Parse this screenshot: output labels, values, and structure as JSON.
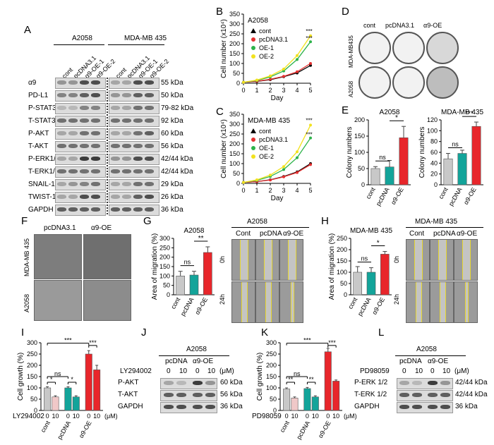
{
  "panels": {
    "A": {
      "letter": "A",
      "group1": "A2058",
      "group2": "MDA-MB 435",
      "lanes": [
        "cont",
        "pcDNA3.1",
        "α9-OE-1",
        "α9-OE-2",
        "cont",
        "pcDNA3.1",
        "α9-OE-1",
        "α9-OE-2"
      ],
      "proteins": [
        "α9",
        "PD-L1",
        "P-STAT3",
        "T-STAT3",
        "P-AKT",
        "T-AKT",
        "P-ERK1/2",
        "T-ERK1/2",
        "SNAIL-1",
        "TWIST-1",
        "GAPDH"
      ],
      "kda": [
        "55 kDa",
        "50 kDa",
        "79-82 kDa",
        "92 kDa",
        "60 kDa",
        "56 kDa",
        "42/44 kDa",
        "42/44 kDa",
        "29 kDa",
        "26 kDa",
        "36 kDa"
      ]
    },
    "B": {
      "letter": "B"
    },
    "C": {
      "letter": "C"
    },
    "D": {
      "letter": "D",
      "cols": [
        "cont",
        "pcDNA3.1",
        "α9-OE"
      ],
      "rows": [
        "MDA-MB435",
        "A2058"
      ]
    },
    "E": {
      "letter": "E"
    },
    "F": {
      "letter": "F",
      "cols": [
        "pcDNA3.1",
        "α9-OE"
      ],
      "rows": [
        "MDA-MB 435",
        "A2058"
      ]
    },
    "G": {
      "letter": "G",
      "img_title": "A2058",
      "cols": [
        "Cont",
        "pcDNA",
        "α9-OE"
      ],
      "rows": [
        "0h",
        "24h"
      ]
    },
    "H": {
      "letter": "H",
      "img_title": "MDA-MB 435",
      "cols": [
        "Cont",
        "pcDNA",
        "α9-OE"
      ],
      "rows": [
        "0h",
        "24h"
      ]
    },
    "I": {
      "letter": "I"
    },
    "J": {
      "letter": "J",
      "title": "A2058",
      "groups": [
        "pcDNA",
        "α9-OE"
      ],
      "treat_label": "LY294002",
      "doses": [
        "0",
        "10",
        "0",
        "10"
      ],
      "unit": "(μM)",
      "proteins": [
        "P-AKT",
        "T-AKT",
        "GAPDH"
      ],
      "kda": [
        "60 kDa",
        "56 kDa",
        "36 kDa"
      ]
    },
    "K": {
      "letter": "K"
    },
    "L": {
      "letter": "L",
      "title": "A2058",
      "groups": [
        "pcDNA",
        "α9-OE"
      ],
      "treat_label": "PD98059",
      "doses": [
        "0",
        "10",
        "0",
        "10"
      ],
      "unit": "(μM)",
      "proteins": [
        "P-ERK 1/2",
        "T-ERK 1/2",
        "GAPDH"
      ],
      "kda": [
        "42/44 kDa",
        "42/44 kDa",
        "36 kDa"
      ]
    }
  },
  "chart_data": [
    {
      "id": "B",
      "type": "line",
      "title": "A2058",
      "xlabel": "Day",
      "ylabel": "Cell number (x10⁴)",
      "x": [
        0,
        1,
        2,
        3,
        4,
        5
      ],
      "xlim": [
        0,
        5
      ],
      "ylim": [
        0,
        350
      ],
      "yticks": [
        0,
        50,
        100,
        150,
        200,
        250,
        300,
        350
      ],
      "series": [
        {
          "name": "cont",
          "color": "#000000",
          "values": [
            5,
            9,
            18,
            33,
            52,
            90
          ]
        },
        {
          "name": "pcDNA3.1",
          "color": "#e53030",
          "values": [
            5,
            10,
            20,
            35,
            58,
            100
          ]
        },
        {
          "name": "OE-1",
          "color": "#2db34a",
          "values": [
            5,
            14,
            32,
            62,
            120,
            210
          ]
        },
        {
          "name": "OE-2",
          "color": "#f2e21e",
          "values": [
            5,
            16,
            37,
            72,
            140,
            240
          ]
        }
      ],
      "annotations": [
        "***",
        "***"
      ]
    },
    {
      "id": "C",
      "type": "line",
      "title": "MDA-MB 435",
      "xlabel": "Day",
      "ylabel": "Cell number (x10⁴)",
      "x": [
        0,
        1,
        2,
        3,
        4,
        5
      ],
      "xlim": [
        0,
        5
      ],
      "ylim": [
        0,
        350
      ],
      "yticks": [
        0,
        50,
        100,
        150,
        200,
        250,
        300,
        350
      ],
      "series": [
        {
          "name": "cont",
          "color": "#000000",
          "values": [
            5,
            9,
            18,
            35,
            58,
            100
          ]
        },
        {
          "name": "pcDNA3.1",
          "color": "#e53030",
          "values": [
            5,
            9,
            17,
            33,
            55,
            95
          ]
        },
        {
          "name": "OE-1",
          "color": "#2db34a",
          "values": [
            5,
            15,
            35,
            70,
            130,
            230
          ]
        },
        {
          "name": "OE-2",
          "color": "#f2e21e",
          "values": [
            5,
            18,
            42,
            85,
            160,
            295
          ]
        }
      ],
      "annotations": [
        "***",
        "***"
      ]
    },
    {
      "id": "E1",
      "type": "bar",
      "title": "A2058",
      "ylabel": "Colony numbers",
      "categories": [
        "cont",
        "pcDNA",
        "α9-OE"
      ],
      "values": [
        50,
        55,
        145
      ],
      "errors": [
        6,
        20,
        35
      ],
      "colors": [
        "#c8c8c8",
        "#13a49a",
        "#e8262b"
      ],
      "ylim": [
        0,
        200
      ],
      "yticks": [
        0,
        50,
        100,
        150,
        200
      ],
      "sig": [
        "ns",
        "*"
      ]
    },
    {
      "id": "E2",
      "type": "bar",
      "title": "MDA-MB 435",
      "ylabel": "Colony numbers",
      "categories": [
        "cont",
        "pcDNA",
        "α9-OE"
      ],
      "values": [
        48,
        58,
        108
      ],
      "errors": [
        10,
        6,
        8
      ],
      "colors": [
        "#c8c8c8",
        "#13a49a",
        "#e8262b"
      ],
      "ylim": [
        0,
        120
      ],
      "yticks": [
        0,
        20,
        40,
        60,
        80,
        100,
        120
      ],
      "sig": [
        "ns",
        "***"
      ]
    },
    {
      "id": "G",
      "type": "bar",
      "title": "A2058",
      "ylabel": "Area of migration (%)",
      "categories": [
        "cont",
        "pcDNA",
        "α9-OE"
      ],
      "values": [
        100,
        105,
        225
      ],
      "errors": [
        25,
        20,
        30
      ],
      "colors": [
        "#c8c8c8",
        "#13a49a",
        "#e8262b"
      ],
      "ylim": [
        0,
        300
      ],
      "yticks": [
        0,
        50,
        100,
        150,
        200,
        250,
        300
      ],
      "sig": [
        "ns",
        "**"
      ]
    },
    {
      "id": "H",
      "type": "bar",
      "title": "MDA-MB 435",
      "ylabel": "Area of migration (%)",
      "categories": [
        "cont",
        "pcDNA",
        "α9-OE"
      ],
      "values": [
        100,
        100,
        180
      ],
      "errors": [
        25,
        20,
        12
      ],
      "colors": [
        "#c8c8c8",
        "#13a49a",
        "#e8262b"
      ],
      "ylim": [
        0,
        250
      ],
      "yticks": [
        0,
        50,
        100,
        150,
        200,
        250
      ],
      "sig": [
        "ns",
        "*"
      ]
    },
    {
      "id": "I",
      "type": "bar",
      "ylabel": "Cell growth (%)",
      "treat_label": "LY294002",
      "unit": "(μM)",
      "groups": [
        "cont",
        "pcDNA",
        "α9-OE"
      ],
      "doses": [
        "0",
        "10"
      ],
      "values": [
        100,
        60,
        100,
        60,
        250,
        180
      ],
      "errors": [
        5,
        5,
        5,
        5,
        15,
        20
      ],
      "colors": [
        "#c8c8c8",
        "#f0c8c8",
        "#13a49a",
        "#13a49a",
        "#e8262b",
        "#e8262b"
      ],
      "ylim": [
        0,
        300
      ],
      "yticks": [
        0,
        50,
        100,
        150,
        200,
        250,
        300
      ],
      "sig": [
        "*",
        "*",
        "ns",
        "***",
        "***"
      ]
    },
    {
      "id": "K",
      "type": "bar",
      "ylabel": "Cell growth (%)",
      "treat_label": "PD98059",
      "unit": "(μM)",
      "groups": [
        "cont",
        "pcDNA",
        "α9-OE"
      ],
      "doses": [
        "0",
        "10"
      ],
      "values": [
        95,
        55,
        97,
        60,
        260,
        130
      ],
      "errors": [
        5,
        5,
        5,
        5,
        15,
        5
      ],
      "colors": [
        "#c8c8c8",
        "#f0c8c8",
        "#13a49a",
        "#13a49a",
        "#e8262b",
        "#e8262b"
      ],
      "ylim": [
        0,
        300
      ],
      "yticks": [
        0,
        50,
        100,
        150,
        200,
        250,
        300
      ],
      "sig": [
        "**",
        "**",
        "ns",
        "***",
        "***"
      ]
    }
  ]
}
